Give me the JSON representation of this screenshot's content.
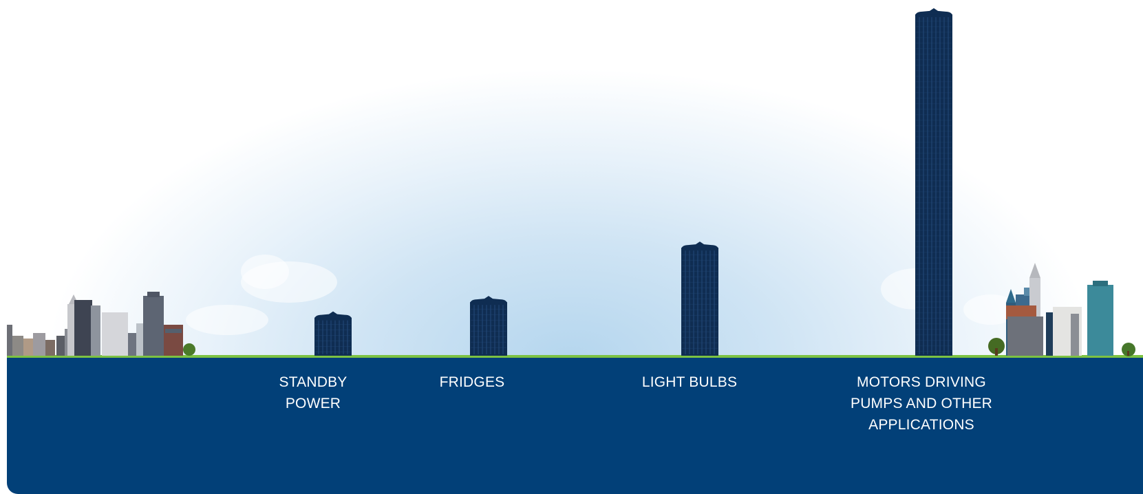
{
  "chart_data": {
    "type": "bar",
    "categories": [
      "STANDBY\nPOWER",
      "FRIDGES",
      "LIGHT BULBS",
      "MOTORS DRIVING\nPUMPS AND OTHER\nAPPLICATIONS"
    ],
    "series": [
      {
        "values": [
          6.3,
          8.6,
          16.7,
          51.5
        ]
      }
    ],
    "ylim": [
      0,
      52
    ],
    "grid": false,
    "legend": "none"
  },
  "colors": {
    "bar": "#0f2d52",
    "bar_window": "#23497a",
    "ground": "#024078",
    "grass": "#7cc242",
    "sky": "#b5d6ee"
  },
  "icons": [
    "skyline-left-illustration",
    "skyline-right-illustration",
    "tree-icon",
    "cloud-icon"
  ]
}
